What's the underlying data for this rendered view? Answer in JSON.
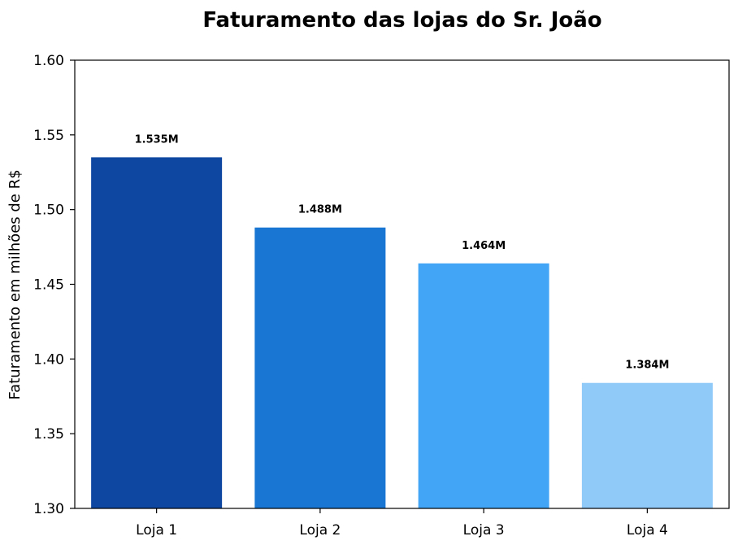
{
  "chart_data": {
    "type": "bar",
    "title": "Faturamento das lojas do Sr. João",
    "xlabel": "",
    "ylabel": "Faturamento em milhões de R$",
    "categories": [
      "Loja 1",
      "Loja 2",
      "Loja 3",
      "Loja 4"
    ],
    "values": [
      1.535,
      1.488,
      1.464,
      1.384
    ],
    "data_labels": [
      "1.535M",
      "1.488M",
      "1.464M",
      "1.384M"
    ],
    "colors": [
      "#0D47A1",
      "#1976D2",
      "#42A5F5",
      "#90CAF9"
    ],
    "ylim": [
      1.3,
      1.6
    ],
    "yticks": [
      1.3,
      1.35,
      1.4,
      1.45,
      1.5,
      1.55,
      1.6
    ],
    "ytick_labels": [
      "1.30",
      "1.35",
      "1.40",
      "1.45",
      "1.50",
      "1.55",
      "1.60"
    ],
    "grid": false,
    "legend": "none"
  }
}
